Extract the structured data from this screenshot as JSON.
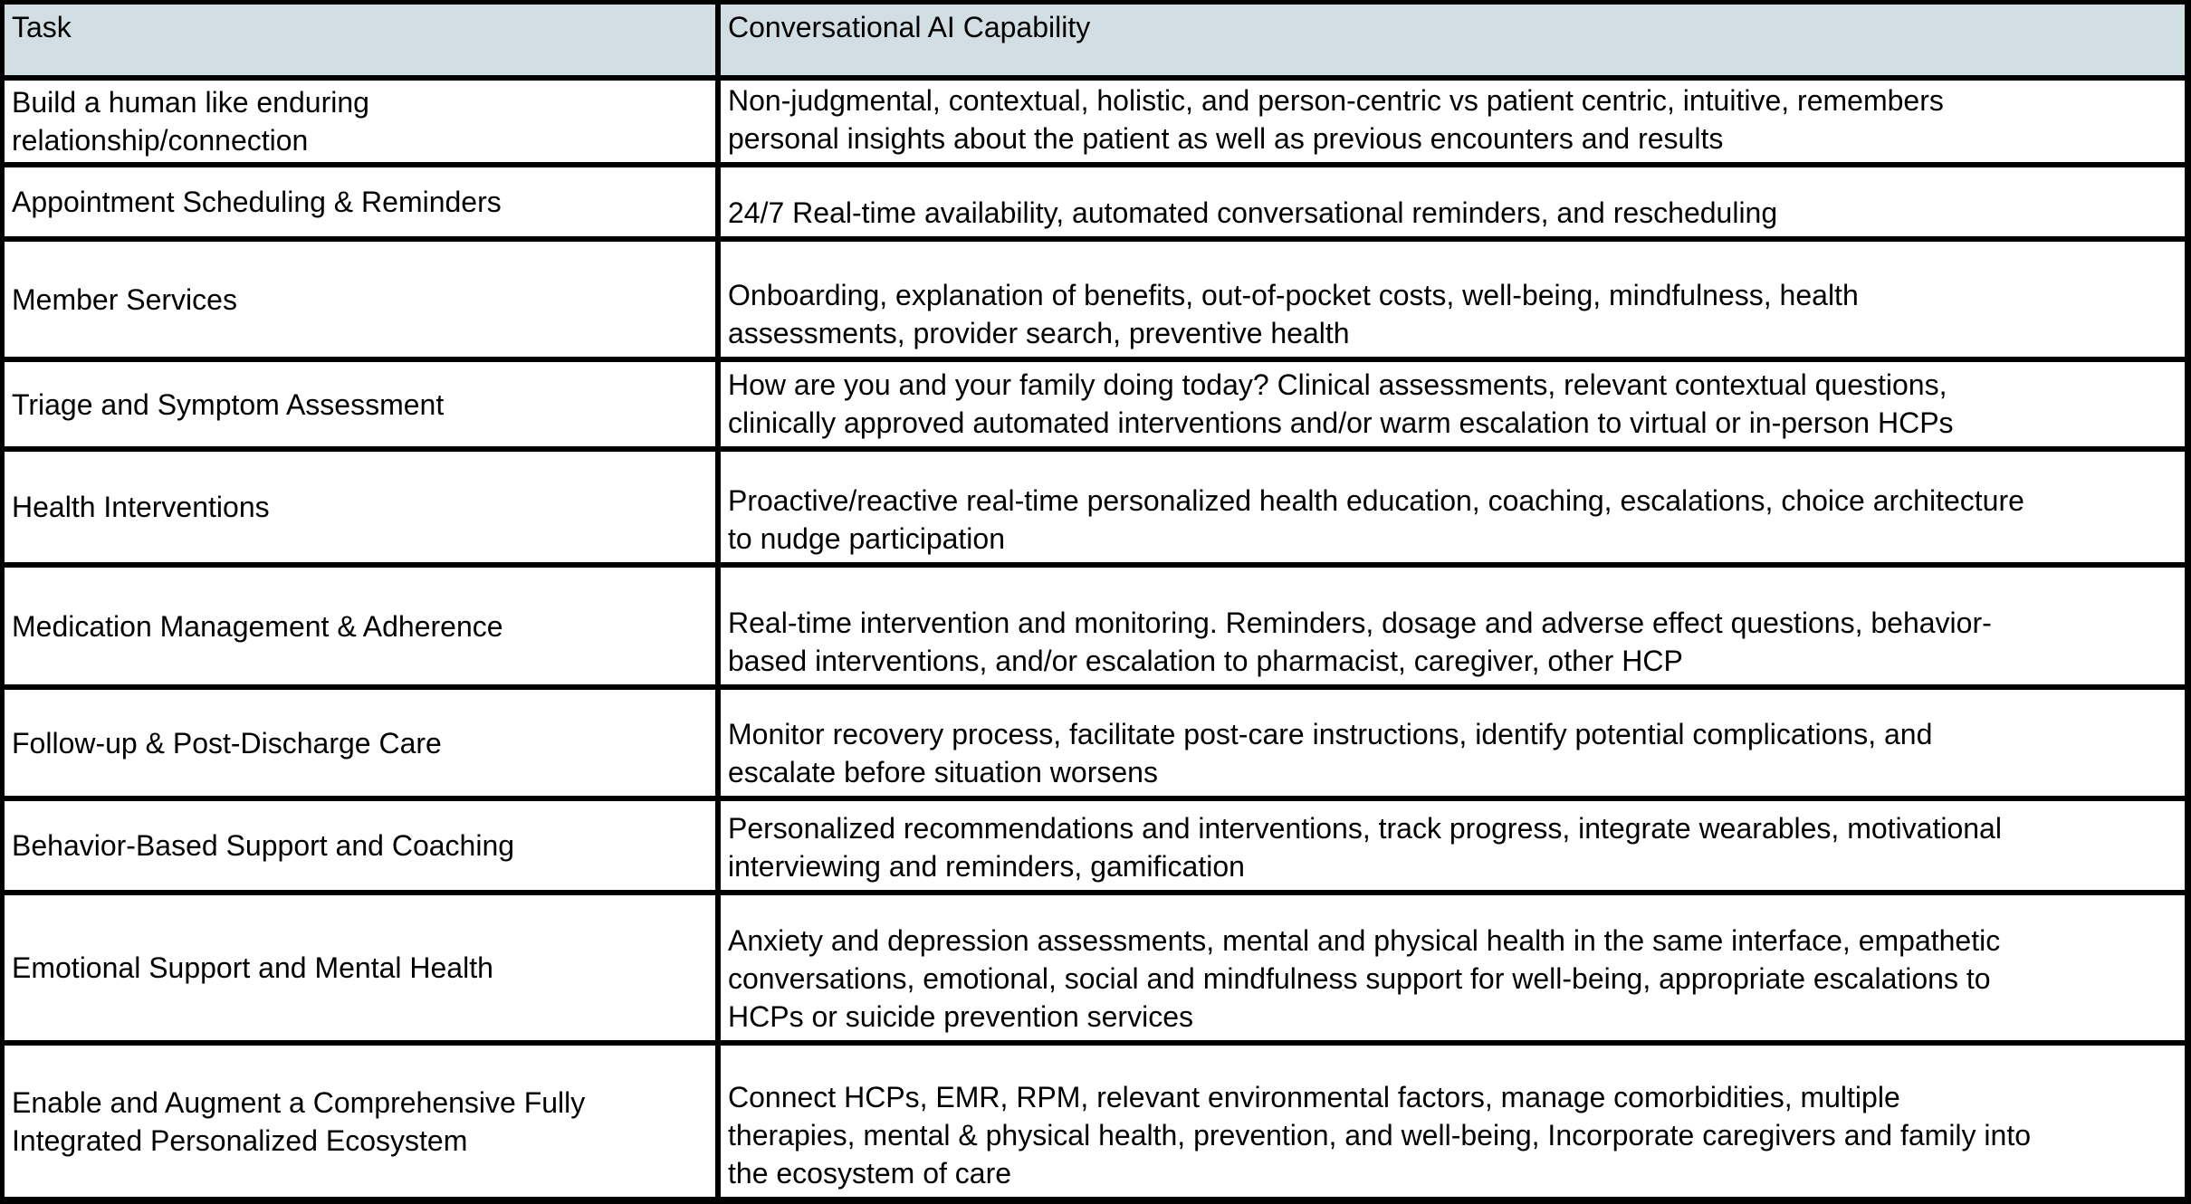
{
  "colors": {
    "header_background": "#d1dee4",
    "border": "#000000",
    "cell_background": "#ffffff",
    "text": "#000000"
  },
  "header": {
    "task": "Task",
    "capability": "Conversational AI Capability"
  },
  "rows": [
    {
      "task": "Build a human like enduring\nrelationship/connection",
      "capability": "Non-judgmental, contextual, holistic, and person-centric vs patient centric, intuitive, remembers\npersonal insights about the patient as well as previous encounters and results"
    },
    {
      "task": "Appointment Scheduling & Reminders",
      "capability": "24/7 Real-time availability, automated conversational reminders, and rescheduling"
    },
    {
      "task": "Member Services",
      "capability": "Onboarding, explanation of benefits, out-of-pocket costs, well-being, mindfulness, health\nassessments, provider search, preventive health"
    },
    {
      "task": "Triage and Symptom Assessment",
      "capability": "How are you and your family doing today? Clinical assessments, relevant contextual questions,\nclinically approved automated interventions and/or warm escalation to virtual or in-person HCPs"
    },
    {
      "task": "Health Interventions",
      "capability": "Proactive/reactive real-time personalized health education, coaching, escalations, choice architecture\nto nudge participation"
    },
    {
      "task": "Medication Management & Adherence",
      "capability": "Real-time intervention and monitoring. Reminders, dosage and adverse effect questions, behavior-\nbased interventions, and/or escalation to pharmacist, caregiver, other HCP"
    },
    {
      "task": "Follow-up & Post-Discharge Care",
      "capability": "Monitor recovery process, facilitate post-care instructions, identify potential complications, and\nescalate before situation worsens"
    },
    {
      "task": "Behavior-Based Support and Coaching",
      "capability": "Personalized recommendations and interventions, track progress, integrate wearables, motivational\ninterviewing and reminders, gamification"
    },
    {
      "task": "Emotional Support and Mental Health",
      "capability": "Anxiety and depression assessments, mental and physical health in the same interface, empathetic\nconversations, emotional, social and mindfulness support for well-being, appropriate escalations to\nHCPs or suicide prevention services"
    },
    {
      "task": "Enable and Augment a Comprehensive Fully\nIntegrated Personalized Ecosystem",
      "capability": "Connect HCPs, EMR, RPM, relevant environmental factors, manage comorbidities, multiple\ntherapies, mental & physical health, prevention, and well-being, Incorporate caregivers and family into\nthe ecosystem of care"
    }
  ]
}
